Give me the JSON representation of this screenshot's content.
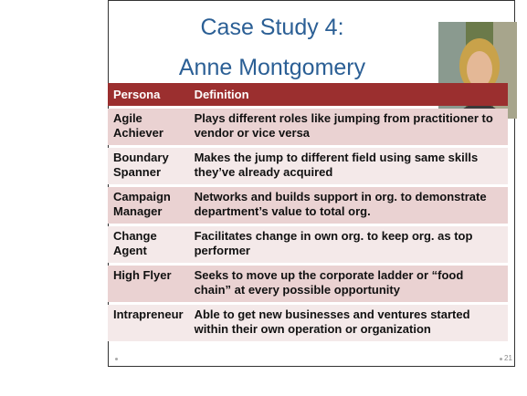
{
  "title": [
    "Case Study 4:",
    "Anne Montgomery"
  ],
  "table": {
    "header": [
      "Persona",
      "Definition"
    ],
    "rows": [
      [
        "Agile Achiever",
        "Plays different roles like jumping from practitioner to vendor or vice versa"
      ],
      [
        "Boundary Spanner",
        "Makes the jump to different field using same skills they’ve already acquired"
      ],
      [
        "Campaign Manager",
        "Networks and builds support in org. to demonstrate department’s value to total org."
      ],
      [
        "Change Agent",
        "Facilitates change in own org. to keep org. as top performer"
      ],
      [
        "High Flyer",
        "Seeks to move up the corporate ladder or “food chain” at every possible opportunity"
      ],
      [
        "Intrapreneur",
        "Able to get new businesses and ventures started within their own operation or organization"
      ]
    ]
  },
  "slide_number": "21"
}
